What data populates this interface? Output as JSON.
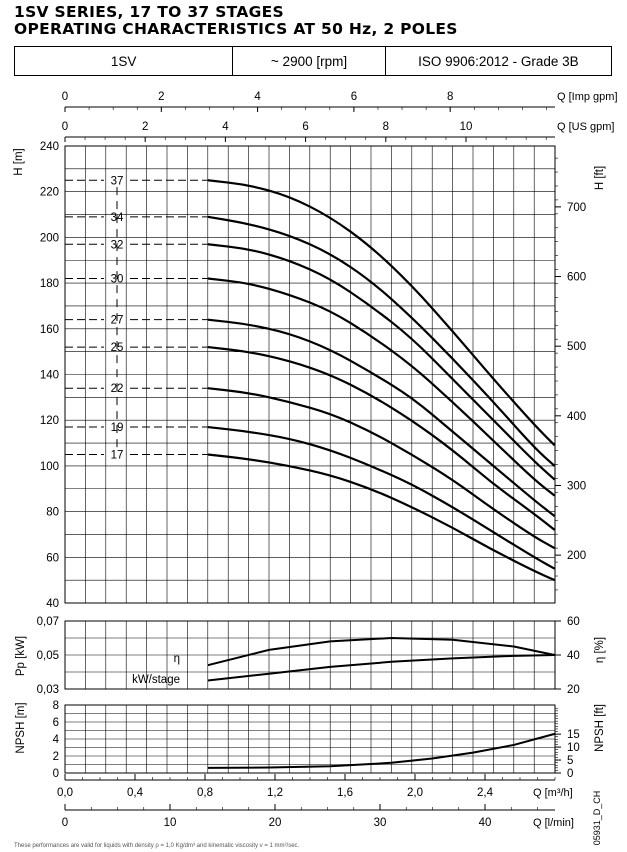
{
  "title_line1": "1SV SERIES, 17 TO 37 STAGES",
  "title_line2": "OPERATING CHARACTERISTICS AT 50 Hz, 2 POLES",
  "header": {
    "model": "1SV",
    "speed": "~ 2900 [rpm]",
    "standard": "ISO 9906:2012 - Grade 3B"
  },
  "doc_code": "05931_D_CH",
  "footnote": "These performances are valid for liquids with density ρ = 1,0 Kg/dm³ and kinematic viscosity ν = 1 mm²/sec.",
  "chart_data": [
    {
      "type": "line",
      "name": "head",
      "ylabel": "H [m]",
      "y2label": "H [ft]",
      "ylim": [
        40,
        240
      ],
      "yticks": [
        40,
        60,
        80,
        100,
        120,
        140,
        160,
        180,
        200,
        220,
        240
      ],
      "y2ticks": [
        200,
        300,
        400,
        500,
        600,
        700
      ],
      "x": [
        0.7,
        0.9,
        1.1,
        1.3,
        1.5,
        1.7,
        1.9,
        2.1,
        2.3,
        2.4
      ],
      "series": [
        {
          "name": "37",
          "values": [
            225,
            223,
            218,
            209,
            196,
            179,
            159,
            138,
            118,
            109
          ]
        },
        {
          "name": "34",
          "values": [
            209,
            206,
            201,
            193,
            181,
            165,
            147,
            128,
            108,
            100
          ]
        },
        {
          "name": "32",
          "values": [
            197,
            195,
            190,
            182,
            170,
            156,
            138,
            120,
            102,
            94
          ]
        },
        {
          "name": "30",
          "values": [
            182,
            180,
            175,
            168,
            157,
            144,
            128,
            111,
            94,
            87
          ]
        },
        {
          "name": "27",
          "values": [
            164,
            162,
            158,
            151,
            141,
            130,
            115,
            100,
            85,
            78
          ]
        },
        {
          "name": "25",
          "values": [
            152,
            150,
            146,
            140,
            131,
            120,
            107,
            92,
            79,
            72
          ]
        },
        {
          "name": "22",
          "values": [
            134,
            132,
            128,
            123,
            115,
            105,
            94,
            81,
            69,
            64
          ]
        },
        {
          "name": "19",
          "values": [
            117,
            115,
            112,
            107,
            100,
            92,
            82,
            71,
            60,
            55
          ]
        },
        {
          "name": "17",
          "values": [
            105,
            103,
            100,
            96,
            90,
            82,
            73,
            63,
            54,
            50
          ]
        }
      ]
    },
    {
      "type": "line",
      "name": "power-efficiency",
      "ylabel": "Pp [kW]",
      "y2label": "η [%]",
      "ylim": [
        0.03,
        0.07
      ],
      "yticks": [
        0.03,
        0.05,
        0.07
      ],
      "yticklabels": [
        "0,03",
        "0,05",
        "0,07"
      ],
      "y2lim": [
        20,
        60
      ],
      "y2ticks": [
        20,
        40,
        60
      ],
      "x": [
        0.7,
        1.0,
        1.3,
        1.6,
        1.9,
        2.2,
        2.4
      ],
      "series": [
        {
          "name": "η",
          "axis": "right",
          "values": [
            34,
            43,
            48,
            50,
            49,
            45,
            40
          ]
        },
        {
          "name": "kW/stage",
          "axis": "left",
          "values": [
            0.035,
            0.039,
            0.043,
            0.046,
            0.048,
            0.0495,
            0.05
          ]
        }
      ]
    },
    {
      "type": "line",
      "name": "npsh",
      "ylabel": "NPSH [m]",
      "y2label": "NPSH [ft]",
      "ylim": [
        0,
        8
      ],
      "yticks": [
        0,
        2,
        4,
        6,
        8
      ],
      "y2ticks": [
        0,
        5,
        10,
        15
      ],
      "x": [
        0.7,
        1.0,
        1.3,
        1.6,
        1.8,
        2.0,
        2.2,
        2.4
      ],
      "series": [
        {
          "name": "NPSH",
          "values": [
            0.6,
            0.65,
            0.8,
            1.2,
            1.7,
            2.4,
            3.3,
            4.6
          ]
        }
      ]
    }
  ],
  "axes": {
    "imp_gpm": {
      "label": "Q [Imp gpm]",
      "ticks": [
        "0",
        "2",
        "4",
        "6",
        "8"
      ]
    },
    "us_gpm": {
      "label": "Q [US gpm]",
      "ticks": [
        "0",
        "2",
        "4",
        "6",
        "8",
        "10"
      ]
    },
    "m3h": {
      "label": "Q [m³/h]",
      "ticks": [
        "0,0",
        "0,4",
        "0,8",
        "1,2",
        "1,6",
        "2,0",
        "2,4"
      ]
    },
    "lmin": {
      "label": "Q [l/min]",
      "ticks": [
        "0",
        "10",
        "20",
        "30",
        "40"
      ]
    },
    "head_left_labels": [
      "40",
      "60",
      "80",
      "100",
      "120",
      "140",
      "160",
      "180",
      "200",
      "220",
      "240"
    ],
    "head_right_labels": [
      "200",
      "300",
      "400",
      "500",
      "600",
      "700"
    ],
    "eta_left_labels": [
      "0,03",
      "0,05",
      "0,07"
    ],
    "eta_right_labels": [
      "20",
      "40",
      "60"
    ],
    "npsh_left_labels": [
      "0",
      "2",
      "4",
      "6",
      "8"
    ],
    "npsh_right_labels": [
      "0",
      "5",
      "10",
      "15"
    ],
    "h_left_title": "H [m]",
    "h_right_title": "H [ft]",
    "p_left_title": "Pp [kW]",
    "p_right_title": "η [%]",
    "n_left_title": "NPSH [m]",
    "n_right_title": "NPSH [ft]",
    "eta_curve_label": "η",
    "kw_curve_label": "kW/stage"
  }
}
